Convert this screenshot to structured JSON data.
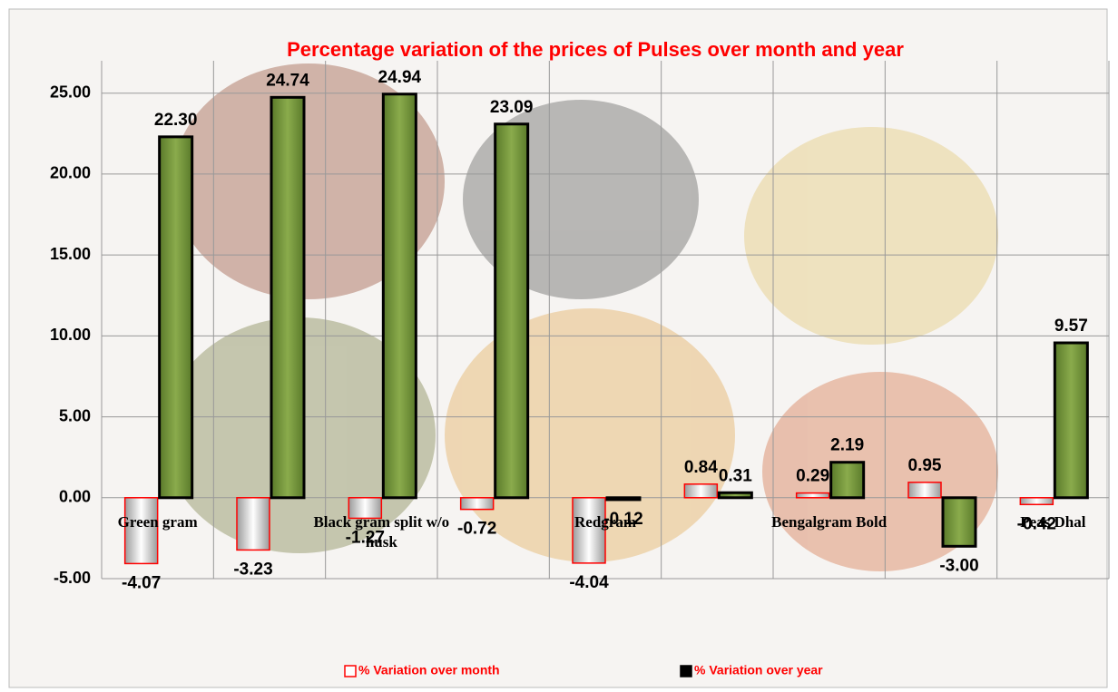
{
  "chart_data": {
    "type": "bar",
    "title": "Percentage variation of the prices of Pulses over month and year",
    "categories": [
      "Green gram",
      null,
      "Black gram  split w/o husk",
      null,
      "Redgram",
      null,
      "Bengalgram Bold",
      null,
      "Peas Dhal"
    ],
    "series": [
      {
        "name": "% Variation over month",
        "color": "#ffffff",
        "values": [
          -4.07,
          -3.23,
          -1.27,
          -0.72,
          -4.04,
          0.84,
          0.29,
          0.95,
          -0.42
        ],
        "value_labels": [
          "-4.07",
          "-3.23",
          "-1.27",
          "-0.72",
          "-4.04",
          "0.84",
          "0.29",
          "0.95",
          "-0.42"
        ]
      },
      {
        "name": "% Variation over year",
        "color": "#76923c",
        "values": [
          22.3,
          24.74,
          24.94,
          23.09,
          -0.12,
          0.31,
          2.19,
          -3.0,
          9.57
        ],
        "value_labels": [
          "22.30",
          "24.74",
          "24.94",
          "23.09",
          "-0.12",
          "0.31",
          "2.19",
          "-3.00",
          "9.57"
        ]
      }
    ],
    "ylim": [
      -5,
      27
    ],
    "yticks": [
      {
        "value": -5,
        "label": "-5.00"
      },
      {
        "value": 0,
        "label": "0.00"
      },
      {
        "value": 5,
        "label": "5.00"
      },
      {
        "value": 10,
        "label": "10.00"
      },
      {
        "value": 15,
        "label": "15.00"
      },
      {
        "value": 20,
        "label": "20.00"
      },
      {
        "value": 25,
        "label": "25.00"
      }
    ],
    "grid": true,
    "legend": "bottom"
  }
}
